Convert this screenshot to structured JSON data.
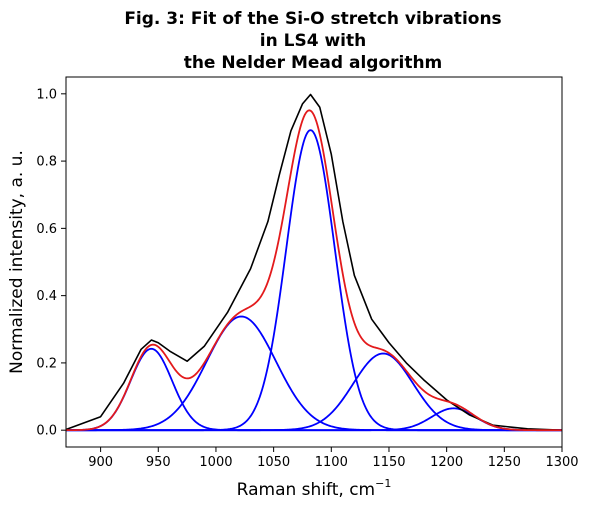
{
  "chart_data": {
    "type": "line",
    "title": [
      "Fig. 3: Fit of the Si-O stretch vibrations",
      "in LS4 with",
      "the Nelder Mead algorithm"
    ],
    "xlabel": "Raman shift, cm",
    "xlabel_sup": "−1",
    "ylabel": "Normalized intensity, a. u.",
    "xlim": [
      870,
      1300
    ],
    "ylim": [
      -0.05,
      1.05
    ],
    "xticks": [
      900,
      950,
      1000,
      1050,
      1100,
      1150,
      1200,
      1250,
      1300
    ],
    "yticks": [
      0.0,
      0.2,
      0.4,
      0.6,
      0.8,
      1.0
    ],
    "grid": false,
    "legend": false,
    "colors": {
      "measured": "#000000",
      "fit": "#e31a1c",
      "components": "#0000ff"
    },
    "components": [
      {
        "center": 944,
        "amplitude": 0.242,
        "sigma": 18
      },
      {
        "center": 1022,
        "amplitude": 0.338,
        "sigma": 30
      },
      {
        "center": 1082,
        "amplitude": 0.892,
        "sigma": 21
      },
      {
        "center": 1145,
        "amplitude": 0.228,
        "sigma": 26
      },
      {
        "center": 1206,
        "amplitude": 0.065,
        "sigma": 19
      }
    ],
    "measured": {
      "x": [
        870,
        900,
        920,
        935,
        944,
        950,
        960,
        975,
        990,
        1010,
        1030,
        1045,
        1055,
        1065,
        1075,
        1082,
        1090,
        1100,
        1110,
        1120,
        1135,
        1150,
        1165,
        1180,
        1200,
        1220,
        1240,
        1270,
        1300
      ],
      "y": [
        0.002,
        0.04,
        0.14,
        0.24,
        0.268,
        0.26,
        0.235,
        0.205,
        0.25,
        0.35,
        0.48,
        0.62,
        0.76,
        0.89,
        0.97,
        0.998,
        0.96,
        0.82,
        0.62,
        0.46,
        0.33,
        0.26,
        0.2,
        0.15,
        0.09,
        0.045,
        0.015,
        0.004,
        0.0
      ]
    }
  }
}
